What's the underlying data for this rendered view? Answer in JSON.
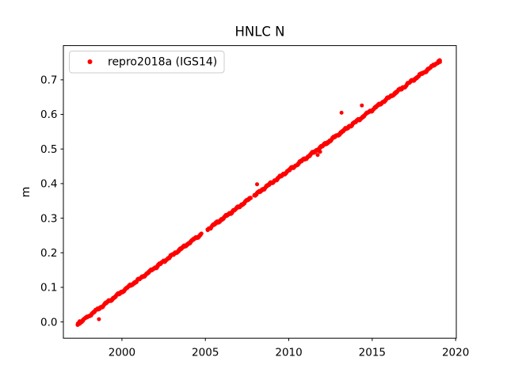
{
  "chart_data": {
    "type": "scatter",
    "title": "HNLC N",
    "xlabel": "",
    "ylabel": "m",
    "grid": false,
    "background_color": "#ffffff",
    "axes_color": "#000000",
    "legend_position": "upper left",
    "xlim": [
      1996.49,
      2020.04
    ],
    "ylim": [
      -0.047,
      0.799
    ],
    "x_ticks": [
      2000,
      2005,
      2010,
      2015,
      2020
    ],
    "y_ticks": [
      0.0,
      0.1,
      0.2,
      0.3,
      0.4,
      0.5,
      0.6,
      0.7
    ],
    "series": [
      {
        "name": "repro2018a (IGS14)",
        "color": "#ff0000",
        "marker": "dot",
        "marker_size_px": 5,
        "trend": {
          "x_start": 1997.34,
          "x_end": 2019.07,
          "y_start": -0.006,
          "y_end": 0.756,
          "slope_m_per_year": 0.0351
        },
        "sampling_step_years": 0.015,
        "noise_amplitude_m": 0.004,
        "gaps_x": [
          [
            2004.78,
            2005.12
          ],
          [
            2007.73,
            2007.93
          ]
        ],
        "outliers": [
          [
            1998.62,
            0.008
          ],
          [
            2008.1,
            0.398
          ],
          [
            2011.73,
            0.483
          ],
          [
            2011.88,
            0.492
          ],
          [
            2013.16,
            0.605
          ],
          [
            2014.38,
            0.626
          ]
        ]
      }
    ]
  }
}
